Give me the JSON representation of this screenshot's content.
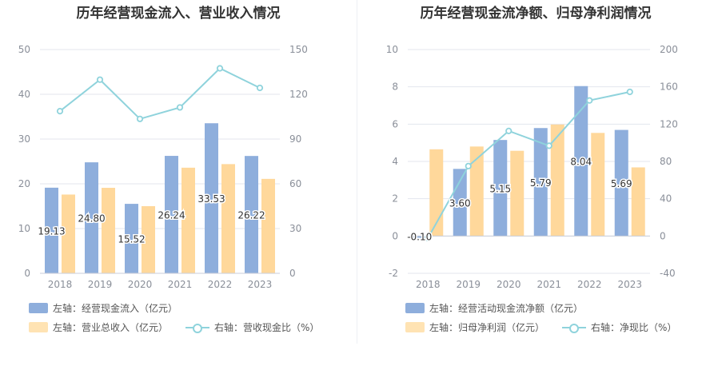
{
  "chart_data": [
    {
      "type": "bar",
      "title": "历年经营现金流入、营业收入情况",
      "categories": [
        "2018",
        "2019",
        "2020",
        "2021",
        "2022",
        "2023"
      ],
      "left_axis": {
        "ylim": [
          0,
          50
        ],
        "ticks": [
          0,
          10,
          20,
          30,
          40,
          50
        ]
      },
      "right_axis": {
        "ylim": [
          0,
          150
        ],
        "ticks": [
          0,
          30,
          60,
          90,
          120,
          150
        ]
      },
      "series": [
        {
          "name": "左轴：经营现金流入（亿元）",
          "kind": "bar",
          "axis": "left",
          "color": "#8eaedc",
          "values": [
            19.13,
            24.8,
            15.52,
            26.24,
            33.53,
            26.22
          ],
          "labels": [
            "19.13",
            "24.80",
            "15.52",
            "26.24",
            "33.53",
            "26.22"
          ]
        },
        {
          "name": "左轴：营业总收入（亿元）",
          "kind": "bar",
          "axis": "left",
          "color": "#ffd89b",
          "values": [
            17.6,
            19.1,
            15.0,
            23.6,
            24.4,
            21.1
          ]
        },
        {
          "name": "右轴：营收现金比（%）",
          "kind": "line",
          "axis": "right",
          "color": "#8fd3dc",
          "values": [
            108.7,
            129.8,
            103.5,
            111.2,
            137.4,
            124.3
          ]
        }
      ],
      "grid": true,
      "legend": "bottom"
    },
    {
      "type": "bar",
      "title": "历年经营现金流净额、归母净利润情况",
      "categories": [
        "2018",
        "2019",
        "2020",
        "2021",
        "2022",
        "2023"
      ],
      "left_axis": {
        "ylim": [
          -2,
          10
        ],
        "ticks": [
          -2,
          0,
          2,
          4,
          6,
          8,
          10
        ]
      },
      "right_axis": {
        "ylim": [
          -40,
          200
        ],
        "ticks": [
          -40,
          0,
          40,
          80,
          120,
          160,
          200
        ]
      },
      "series": [
        {
          "name": "左轴：经营活动现金流净额（亿元）",
          "kind": "bar",
          "axis": "left",
          "color": "#8eaedc",
          "values": [
            -0.1,
            3.6,
            5.15,
            5.79,
            8.04,
            5.69
          ],
          "labels": [
            "-0.10",
            "3.60",
            "5.15",
            "5.79",
            "8.04",
            "5.69"
          ]
        },
        {
          "name": "左轴：归母净利润（亿元）",
          "kind": "bar",
          "axis": "left",
          "color": "#ffd89b",
          "values": [
            4.65,
            4.8,
            4.57,
            5.98,
            5.53,
            3.68
          ]
        },
        {
          "name": "右轴：净现比（%）",
          "kind": "line",
          "axis": "right",
          "color": "#8fd3dc",
          "values": [
            -2.2,
            75.0,
            112.7,
            96.8,
            145.4,
            154.6
          ]
        }
      ],
      "grid": true,
      "legend": "bottom"
    }
  ]
}
